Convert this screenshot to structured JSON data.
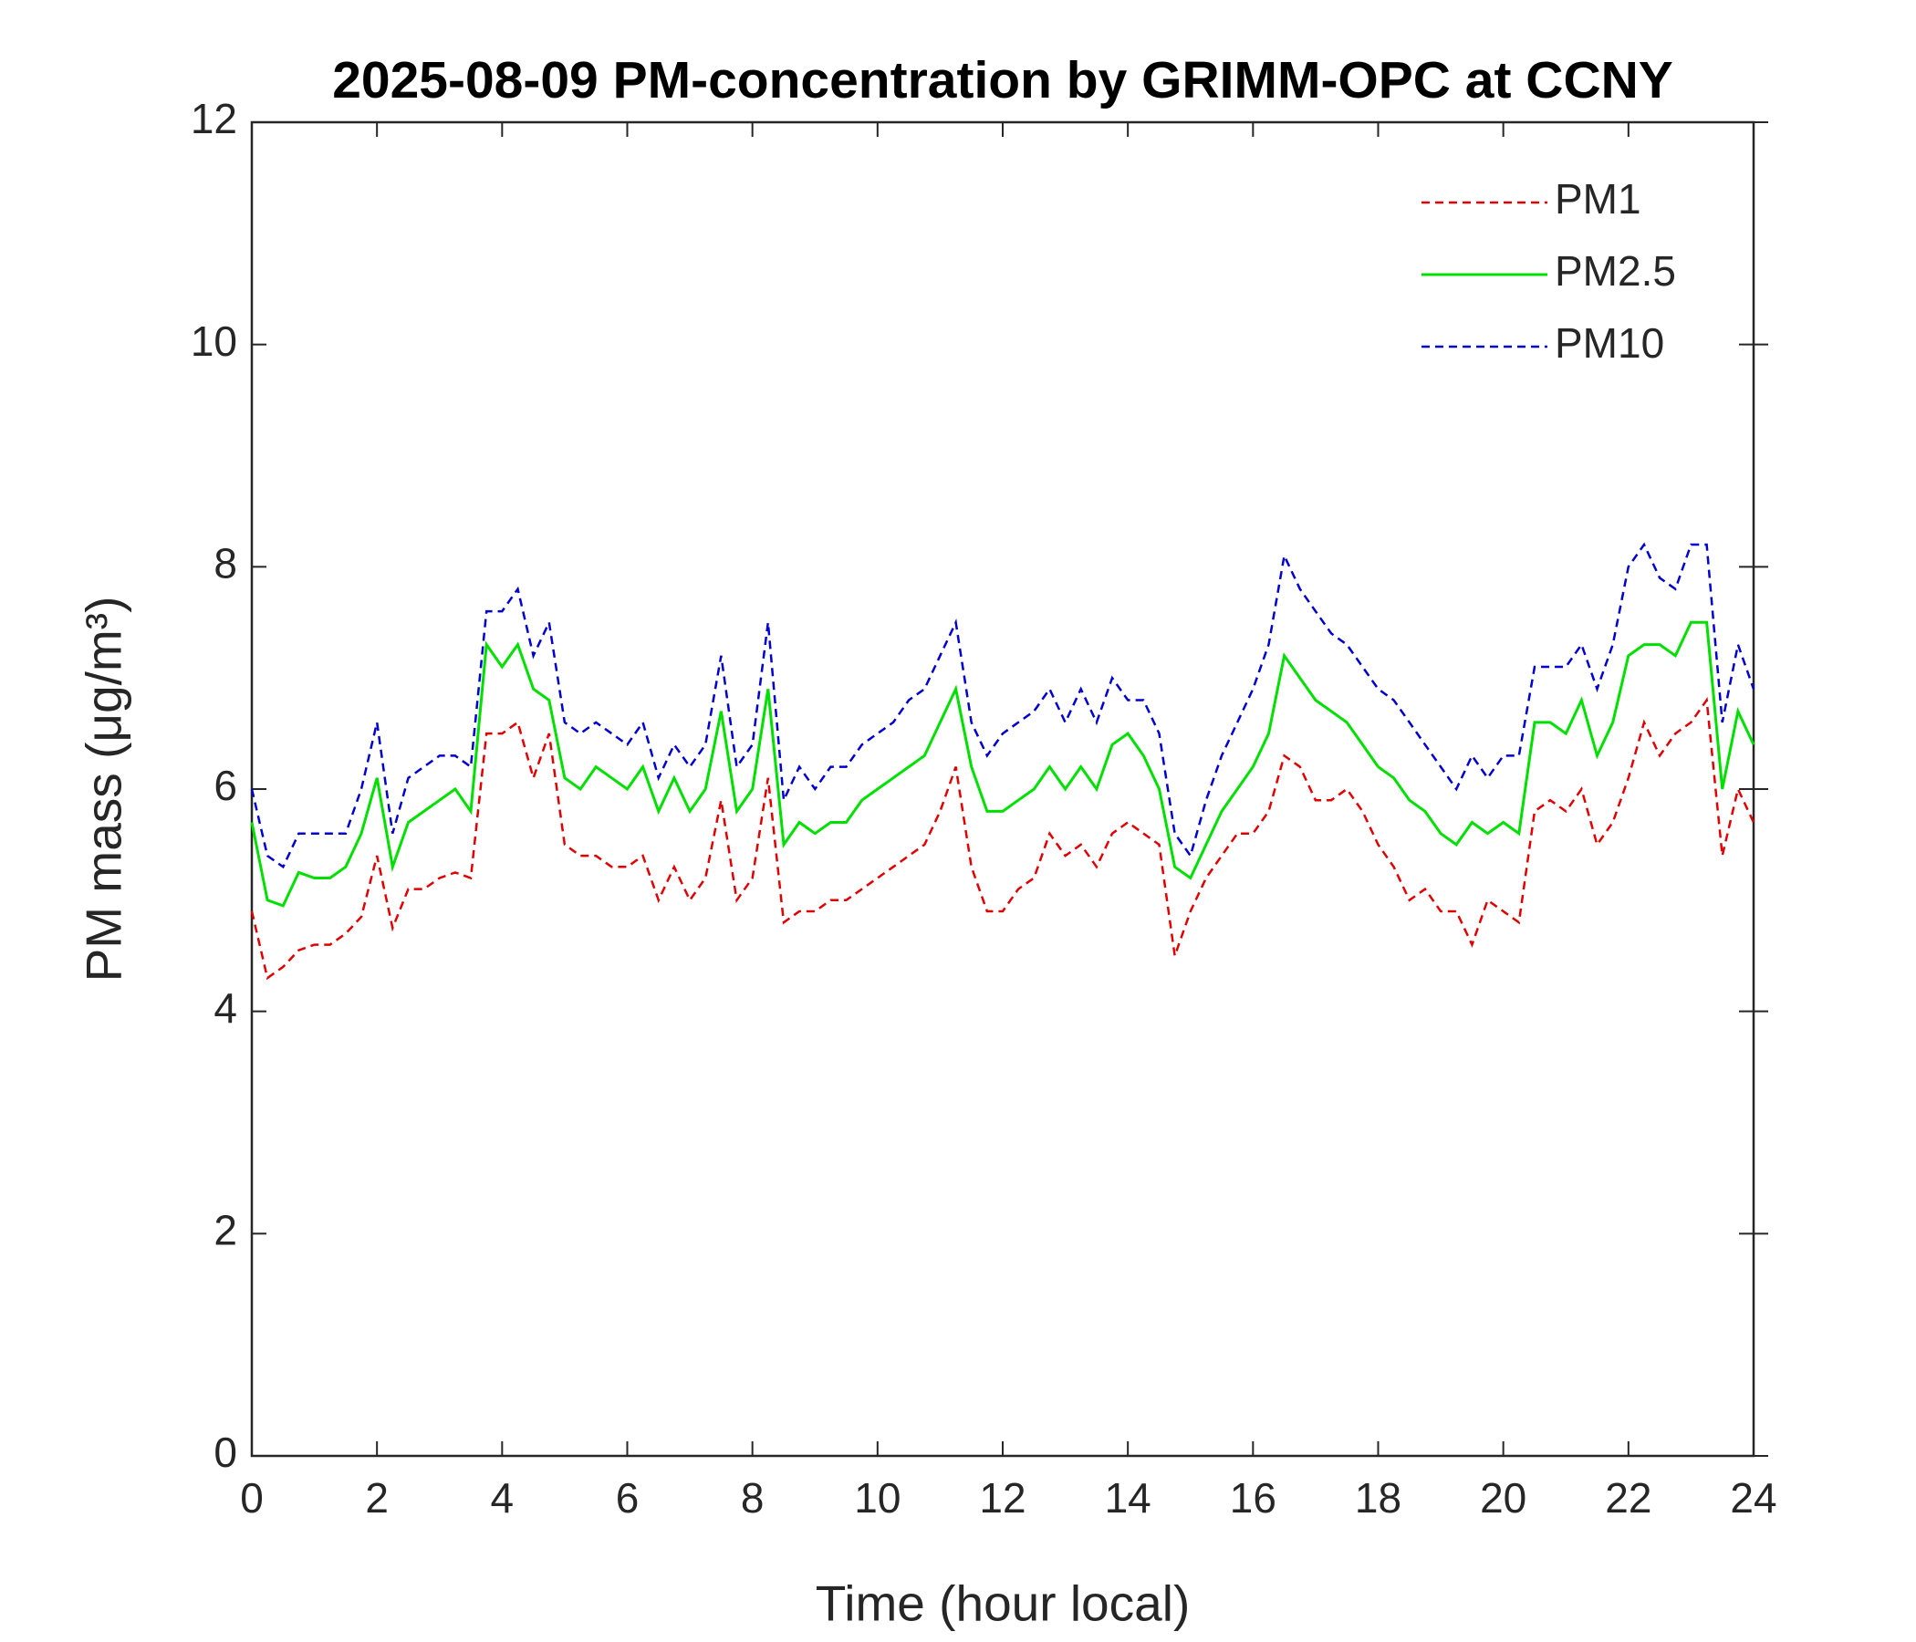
{
  "chart_data": {
    "type": "line",
    "title": "2025-08-09 PM-concentration by GRIMM-OPC at CCNY",
    "xlabel": "Time (hour local)",
    "ylabel": "PM mass (μg/m³)",
    "x": [
      0,
      0.25,
      0.5,
      0.75,
      1,
      1.25,
      1.5,
      1.75,
      2,
      2.25,
      2.5,
      2.75,
      3,
      3.25,
      3.5,
      3.75,
      4,
      4.25,
      4.5,
      4.75,
      5,
      5.25,
      5.5,
      5.75,
      6,
      6.25,
      6.5,
      6.75,
      7,
      7.25,
      7.5,
      7.75,
      8,
      8.25,
      8.5,
      8.75,
      9,
      9.25,
      9.5,
      9.75,
      10,
      10.25,
      10.5,
      10.75,
      11,
      11.25,
      11.5,
      11.75,
      12,
      12.25,
      12.5,
      12.75,
      13,
      13.25,
      13.5,
      13.75,
      14,
      14.25,
      14.5,
      14.75,
      15,
      15.25,
      15.5,
      15.75,
      16,
      16.25,
      16.5,
      16.75,
      17,
      17.25,
      17.5,
      17.75,
      18,
      18.25,
      18.5,
      18.75,
      19,
      19.25,
      19.5,
      19.75,
      20,
      20.25,
      20.5,
      20.75,
      21,
      21.25,
      21.5,
      21.75,
      22,
      22.25,
      22.5,
      22.75,
      23,
      23.25,
      23.5,
      23.75,
      24
    ],
    "series": [
      {
        "name": "PM1",
        "color": "#e00000",
        "linestyle": "dashed",
        "values": [
          4.9,
          4.3,
          4.4,
          4.55,
          4.6,
          4.6,
          4.7,
          4.85,
          5.4,
          4.75,
          5.1,
          5.1,
          5.2,
          5.25,
          5.2,
          6.5,
          6.5,
          6.6,
          6.1,
          6.5,
          5.5,
          5.4,
          5.4,
          5.3,
          5.3,
          5.4,
          5.0,
          5.3,
          5.0,
          5.2,
          5.9,
          5.0,
          5.2,
          6.1,
          4.8,
          4.9,
          4.9,
          5.0,
          5.0,
          5.1,
          5.2,
          5.3,
          5.4,
          5.5,
          5.8,
          6.2,
          5.3,
          4.9,
          4.9,
          5.1,
          5.2,
          5.6,
          5.4,
          5.5,
          5.3,
          5.6,
          5.7,
          5.6,
          5.5,
          4.5,
          4.9,
          5.2,
          5.4,
          5.6,
          5.6,
          5.8,
          6.3,
          6.2,
          5.9,
          5.9,
          6.0,
          5.8,
          5.5,
          5.3,
          5.0,
          5.1,
          4.9,
          4.9,
          4.6,
          5.0,
          4.9,
          4.8,
          5.8,
          5.9,
          5.8,
          6.0,
          5.5,
          5.7,
          6.1,
          6.6,
          6.3,
          6.5,
          6.6,
          6.8,
          5.4,
          6.0,
          5.7
        ]
      },
      {
        "name": "PM2.5",
        "color": "#00e000",
        "linestyle": "solid",
        "values": [
          5.7,
          5.0,
          4.95,
          5.25,
          5.2,
          5.2,
          5.3,
          5.6,
          6.1,
          5.3,
          5.7,
          5.8,
          5.9,
          6.0,
          5.8,
          7.3,
          7.1,
          7.3,
          6.9,
          6.8,
          6.1,
          6.0,
          6.2,
          6.1,
          6.0,
          6.2,
          5.8,
          6.1,
          5.8,
          6.0,
          6.7,
          5.8,
          6.0,
          6.9,
          5.5,
          5.7,
          5.6,
          5.7,
          5.7,
          5.9,
          6.0,
          6.1,
          6.2,
          6.3,
          6.6,
          6.9,
          6.2,
          5.8,
          5.8,
          5.9,
          6.0,
          6.2,
          6.0,
          6.2,
          6.0,
          6.4,
          6.5,
          6.3,
          6.0,
          5.3,
          5.2,
          5.5,
          5.8,
          6.0,
          6.2,
          6.5,
          7.2,
          7.0,
          6.8,
          6.7,
          6.6,
          6.4,
          6.2,
          6.1,
          5.9,
          5.8,
          5.6,
          5.5,
          5.7,
          5.6,
          5.7,
          5.6,
          6.6,
          6.6,
          6.5,
          6.8,
          6.3,
          6.6,
          7.2,
          7.3,
          7.3,
          7.2,
          7.5,
          7.5,
          6.0,
          6.7,
          6.4
        ]
      },
      {
        "name": "PM10",
        "color": "#0000d0",
        "linestyle": "dashed",
        "values": [
          6.0,
          5.4,
          5.3,
          5.6,
          5.6,
          5.6,
          5.6,
          6.0,
          6.6,
          5.6,
          6.1,
          6.2,
          6.3,
          6.3,
          6.2,
          7.6,
          7.6,
          7.8,
          7.2,
          7.5,
          6.6,
          6.5,
          6.6,
          6.5,
          6.4,
          6.6,
          6.1,
          6.4,
          6.2,
          6.4,
          7.2,
          6.2,
          6.4,
          7.5,
          5.9,
          6.2,
          6.0,
          6.2,
          6.2,
          6.4,
          6.5,
          6.6,
          6.8,
          6.9,
          7.2,
          7.5,
          6.6,
          6.3,
          6.5,
          6.6,
          6.7,
          6.9,
          6.6,
          6.9,
          6.6,
          7.0,
          6.8,
          6.8,
          6.5,
          5.6,
          5.4,
          5.9,
          6.3,
          6.6,
          6.9,
          7.3,
          8.1,
          7.8,
          7.6,
          7.4,
          7.3,
          7.1,
          6.9,
          6.8,
          6.6,
          6.4,
          6.2,
          6.0,
          6.3,
          6.1,
          6.3,
          6.3,
          7.1,
          7.1,
          7.1,
          7.3,
          6.9,
          7.3,
          8.0,
          8.2,
          7.9,
          7.8,
          8.2,
          8.2,
          6.6,
          7.3,
          6.9
        ]
      }
    ],
    "xlim": [
      0,
      24
    ],
    "xticks": [
      0,
      2,
      4,
      6,
      8,
      10,
      12,
      14,
      16,
      18,
      20,
      22,
      24
    ],
    "ylim": [
      0,
      12
    ],
    "yticks": [
      0,
      2,
      4,
      6,
      8,
      10,
      12
    ],
    "legend": "upper right",
    "grid": false
  }
}
